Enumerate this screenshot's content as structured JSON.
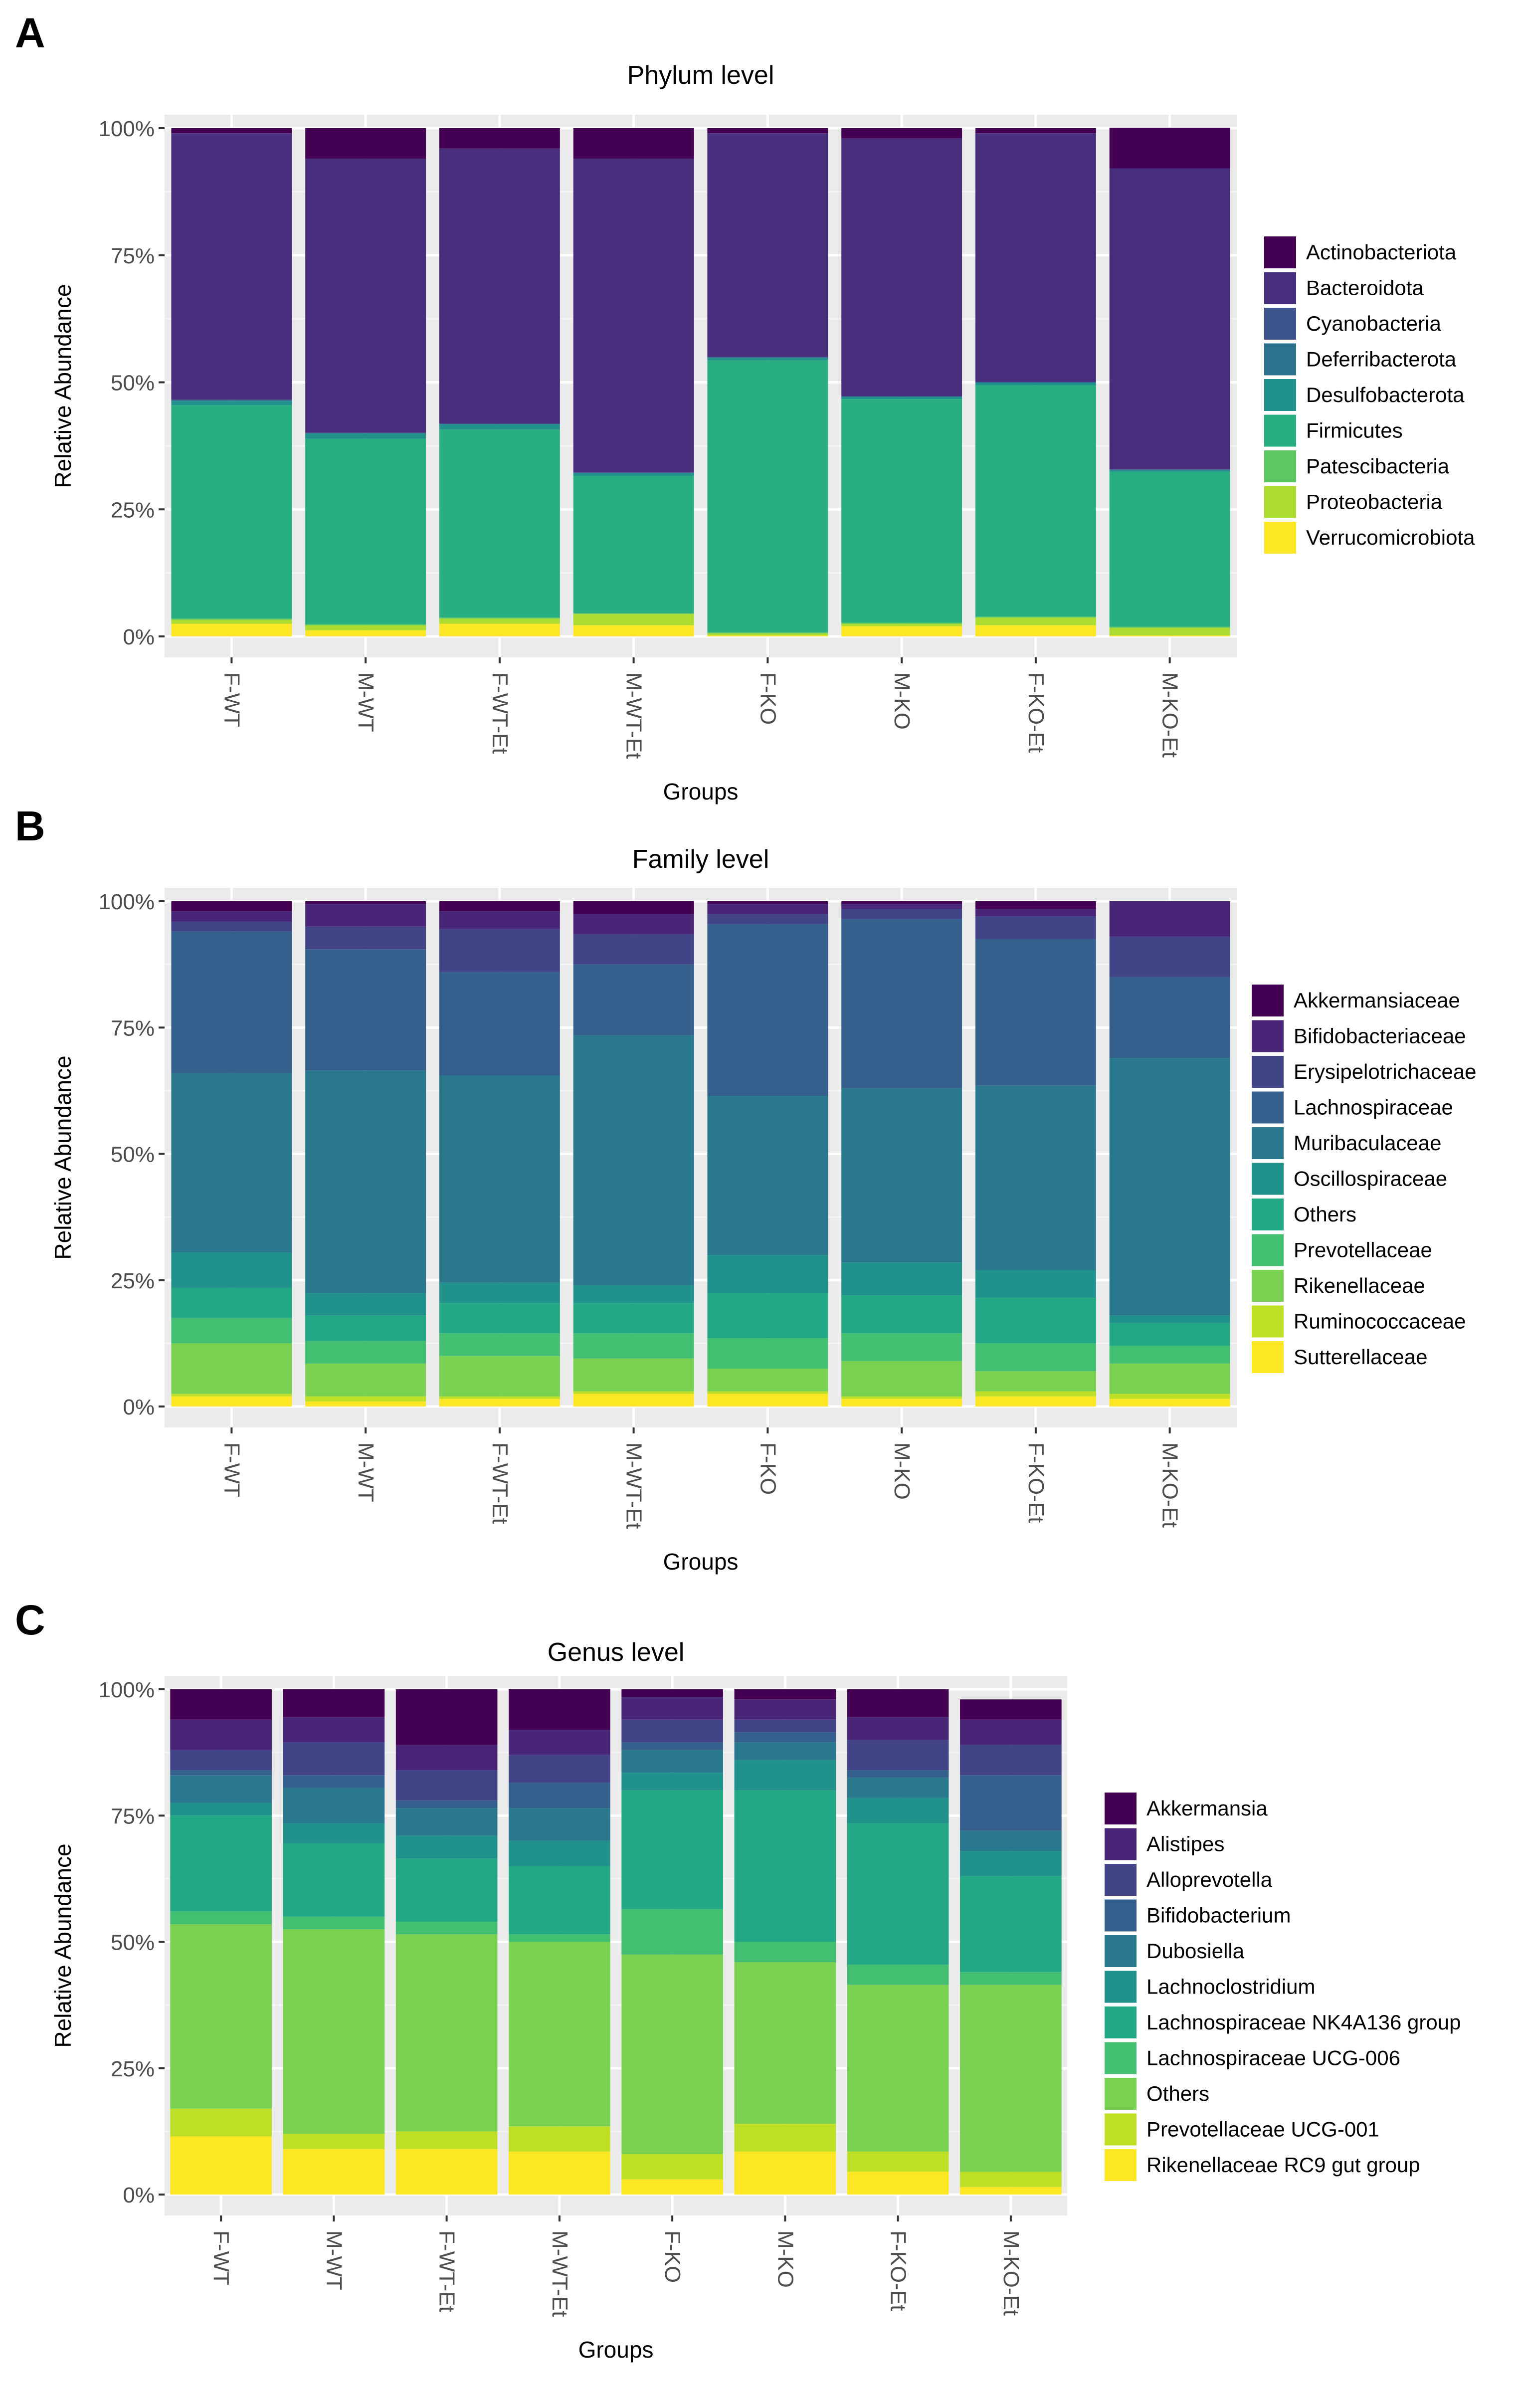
{
  "panels": [
    {
      "letter": "A"
    },
    {
      "letter": "B"
    },
    {
      "letter": "C"
    }
  ],
  "chart_data": [
    {
      "type": "bar",
      "stacked": true,
      "title": "Phylum level",
      "xlabel": "Groups",
      "ylabel": "Relative Abundance",
      "ylim": [
        0,
        1
      ],
      "yticks": [
        "0%",
        "25%",
        "50%",
        "75%",
        "100%"
      ],
      "categories": [
        "F-WT",
        "M-WT",
        "F-WT-Et",
        "M-WT-Et",
        "F-KO",
        "M-KO",
        "F-KO-Et",
        "M-KO-Et"
      ],
      "legend": [
        "Actinobacteriota",
        "Bacteroidota",
        "Cyanobacteria",
        "Deferribacterota",
        "Desulfobacterota",
        "Firmicutes",
        "Patescibacteria",
        "Proteobacteria",
        "Verrucomicrobiota"
      ],
      "colors": [
        "#440154",
        "#472d7b",
        "#3b528b",
        "#2c728e",
        "#21918c",
        "#28ae80",
        "#5ec962",
        "#addc30",
        "#fde725"
      ],
      "series": [
        {
          "name": "Verrucomicrobiota",
          "values": [
            0.025,
            0.012,
            0.025,
            0.022,
            0.002,
            0.02,
            0.022,
            0.002
          ]
        },
        {
          "name": "Proteobacteria",
          "values": [
            0.008,
            0.01,
            0.01,
            0.022,
            0.004,
            0.005,
            0.015,
            0.015
          ]
        },
        {
          "name": "Patescibacteria",
          "values": [
            0.002,
            0.002,
            0.002,
            0.002,
            0.002,
            0.002,
            0.002,
            0.002
          ]
        },
        {
          "name": "Firmicutes",
          "values": [
            0.42,
            0.365,
            0.37,
            0.27,
            0.535,
            0.44,
            0.455,
            0.305
          ]
        },
        {
          "name": "Desulfobacterota",
          "values": [
            0.008,
            0.01,
            0.01,
            0.005,
            0.005,
            0.004,
            0.005,
            0.003
          ]
        },
        {
          "name": "Deferribacterota",
          "values": [
            0.002,
            0.001,
            0.001,
            0.001,
            0.001,
            0.001,
            0.001,
            0.001
          ]
        },
        {
          "name": "Cyanobacteria",
          "values": [
            0.001,
            0.001,
            0.001,
            0.001,
            0.001,
            0.001,
            0.001,
            0.001
          ]
        },
        {
          "name": "Bacteroidota",
          "values": [
            0.524,
            0.539,
            0.541,
            0.617,
            0.44,
            0.507,
            0.489,
            0.592
          ]
        },
        {
          "name": "Actinobacteriota",
          "values": [
            0.01,
            0.06,
            0.04,
            0.06,
            0.01,
            0.02,
            0.01,
            0.08
          ]
        }
      ]
    },
    {
      "type": "bar",
      "stacked": true,
      "title": "Family level",
      "xlabel": "Groups",
      "ylabel": "Relative Abundance",
      "ylim": [
        0,
        1
      ],
      "yticks": [
        "0%",
        "25%",
        "50%",
        "75%",
        "100%"
      ],
      "categories": [
        "F-WT",
        "M-WT",
        "F-WT-Et",
        "M-WT-Et",
        "F-KO",
        "M-KO",
        "F-KO-Et",
        "M-KO-Et"
      ],
      "legend": [
        "Akkermansiaceae",
        "Bifidobacteriaceae",
        "Erysipelotrichaceae",
        "Lachnospiraceae",
        "Muribaculaceae",
        "Oscillospiraceae",
        "Others",
        "Prevotellaceae",
        "Rikenellaceae",
        "Ruminococcaceae",
        "Sutterellaceae"
      ],
      "colors": [
        "#440154",
        "#482576",
        "#414487",
        "#35608d",
        "#2a788e",
        "#21918c",
        "#22a884",
        "#43bf71",
        "#7ad151",
        "#bddf26",
        "#fde725"
      ],
      "series": [
        {
          "name": "Sutterellaceae",
          "values": [
            0.02,
            0.01,
            0.015,
            0.025,
            0.025,
            0.015,
            0.02,
            0.015
          ]
        },
        {
          "name": "Ruminococcaceae",
          "values": [
            0.005,
            0.01,
            0.005,
            0.005,
            0.005,
            0.005,
            0.01,
            0.01
          ]
        },
        {
          "name": "Rikenellaceae",
          "values": [
            0.1,
            0.065,
            0.08,
            0.065,
            0.045,
            0.07,
            0.04,
            0.06
          ]
        },
        {
          "name": "Prevotellaceae",
          "values": [
            0.05,
            0.045,
            0.045,
            0.05,
            0.06,
            0.055,
            0.055,
            0.035
          ]
        },
        {
          "name": "Others",
          "values": [
            0.06,
            0.05,
            0.06,
            0.06,
            0.09,
            0.075,
            0.09,
            0.045
          ]
        },
        {
          "name": "Oscillospiraceae",
          "values": [
            0.07,
            0.045,
            0.04,
            0.035,
            0.075,
            0.065,
            0.055,
            0.015
          ]
        },
        {
          "name": "Muribaculaceae",
          "values": [
            0.355,
            0.44,
            0.41,
            0.495,
            0.315,
            0.345,
            0.365,
            0.51
          ]
        },
        {
          "name": "Lachnospiraceae",
          "values": [
            0.28,
            0.24,
            0.205,
            0.14,
            0.34,
            0.335,
            0.29,
            0.16
          ]
        },
        {
          "name": "Erysipelotrichaceae",
          "values": [
            0.02,
            0.045,
            0.085,
            0.06,
            0.02,
            0.02,
            0.045,
            0.08
          ]
        },
        {
          "name": "Bifidobacteriaceae",
          "values": [
            0.02,
            0.045,
            0.035,
            0.04,
            0.02,
            0.01,
            0.015,
            0.07
          ]
        },
        {
          "name": "Akkermansiaceae",
          "values": [
            0.02,
            0.005,
            0.02,
            0.025,
            0.005,
            0.005,
            0.015,
            0.0
          ]
        }
      ]
    },
    {
      "type": "bar",
      "stacked": true,
      "title": "Genus level",
      "xlabel": "Groups",
      "ylabel": "Relative Abundance",
      "ylim": [
        0,
        1
      ],
      "yticks": [
        "0%",
        "25%",
        "50%",
        "75%",
        "100%"
      ],
      "categories": [
        "F-WT",
        "M-WT",
        "F-WT-Et",
        "M-WT-Et",
        "F-KO",
        "M-KO",
        "F-KO-Et",
        "M-KO-Et"
      ],
      "legend": [
        "Akkermansia",
        "Alistipes",
        "Alloprevotella",
        "Bifidobacterium",
        "Dubosiella",
        "Lachnoclostridium",
        "Lachnospiraceae NK4A136 group",
        "Lachnospiraceae UCG-006",
        "Others",
        "Prevotellaceae UCG-001",
        "Rikenellaceae RC9 gut group"
      ],
      "colors": [
        "#440154",
        "#482576",
        "#414487",
        "#35608d",
        "#2a788e",
        "#21918c",
        "#22a884",
        "#43bf71",
        "#7ad151",
        "#bddf26",
        "#fde725"
      ],
      "series": [
        {
          "name": "Rikenellaceae RC9 gut group",
          "values": [
            0.115,
            0.09,
            0.09,
            0.085,
            0.03,
            0.085,
            0.045,
            0.015
          ]
        },
        {
          "name": "Prevotellaceae UCG-001",
          "values": [
            0.055,
            0.03,
            0.035,
            0.05,
            0.05,
            0.055,
            0.04,
            0.03
          ]
        },
        {
          "name": "Others",
          "values": [
            0.365,
            0.405,
            0.39,
            0.365,
            0.395,
            0.32,
            0.33,
            0.37
          ]
        },
        {
          "name": "Lachnospiraceae UCG-006",
          "values": [
            0.025,
            0.025,
            0.025,
            0.015,
            0.09,
            0.04,
            0.04,
            0.025
          ]
        },
        {
          "name": "Lachnospiraceae NK4A136 group",
          "values": [
            0.19,
            0.145,
            0.125,
            0.135,
            0.235,
            0.3,
            0.28,
            0.19
          ]
        },
        {
          "name": "Lachnoclostridium",
          "values": [
            0.025,
            0.04,
            0.045,
            0.05,
            0.035,
            0.06,
            0.05,
            0.05
          ]
        },
        {
          "name": "Dubosiella",
          "values": [
            0.055,
            0.07,
            0.055,
            0.065,
            0.045,
            0.035,
            0.04,
            0.04
          ]
        },
        {
          "name": "Bifidobacterium",
          "values": [
            0.01,
            0.025,
            0.015,
            0.05,
            0.015,
            0.02,
            0.015,
            0.11
          ]
        },
        {
          "name": "Alloprevotella",
          "values": [
            0.04,
            0.065,
            0.06,
            0.055,
            0.045,
            0.025,
            0.06,
            0.06
          ]
        },
        {
          "name": "Alistipes",
          "values": [
            0.06,
            0.05,
            0.05,
            0.05,
            0.045,
            0.04,
            0.045,
            0.05
          ]
        },
        {
          "name": "Akkermansia",
          "values": [
            0.06,
            0.055,
            0.11,
            0.08,
            0.015,
            0.02,
            0.055,
            0.04
          ]
        }
      ]
    }
  ]
}
